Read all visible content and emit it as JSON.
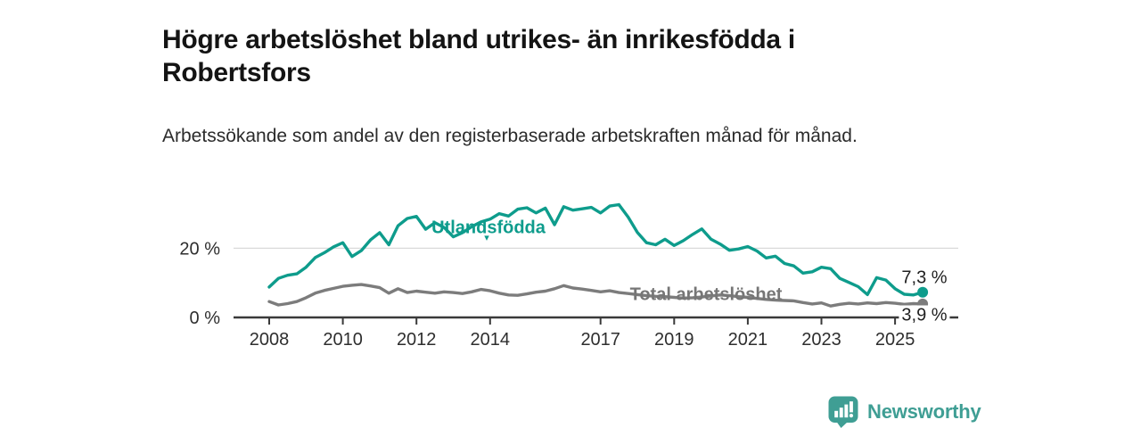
{
  "title": "Högre arbetslöshet bland utrikes- än inrikesfödda i Robertsfors",
  "subtitle": "Arbetssökande som andel av den registerbaserade arbetskraften månad för månad.",
  "icons": {
    "label_pointer": "▾"
  },
  "branding": {
    "name": "Newsworthy",
    "color": "#3f9e94"
  },
  "chart_data": {
    "type": "line",
    "title": "Högre arbetslöshet bland utrikes- än inrikesfödda i Robertsfors",
    "subtitle": "Arbetssökande som andel av den registerbaserade arbetskraften månad för månad.",
    "x_unit": "decimal_year",
    "x_start": 2008,
    "x_step": 0.25,
    "xlim": [
      2007.6,
      2026.2
    ],
    "ylim": [
      0,
      34
    ],
    "grid": "y-at-20-only",
    "legend_position": "inline-labels",
    "grid_y": [
      20
    ],
    "y_ticks": [
      {
        "value": 20,
        "label": "20 %"
      },
      {
        "value": 0,
        "label": "0 %"
      }
    ],
    "x_ticks": [
      {
        "year": 2008,
        "label": "2008"
      },
      {
        "year": 2010,
        "label": "2010"
      },
      {
        "year": 2012,
        "label": "2012"
      },
      {
        "year": 2014,
        "label": "2014"
      },
      {
        "year": 2017,
        "label": "2017"
      },
      {
        "year": 2019,
        "label": "2019"
      },
      {
        "year": 2021,
        "label": "2021"
      },
      {
        "year": 2023,
        "label": "2023"
      },
      {
        "year": 2025,
        "label": "2025"
      }
    ],
    "series": [
      {
        "name": "Utlandsfödda",
        "color": "#0e9c8c",
        "end_label": "7,3 %",
        "end_value": 7.3,
        "values": [
          8.8,
          11.3,
          12.2,
          12.6,
          14.5,
          17.3,
          18.7,
          20.4,
          21.6,
          17.6,
          19.3,
          22.4,
          24.5,
          21.0,
          26.5,
          28.6,
          29.2,
          25.5,
          27.4,
          26.0,
          23.3,
          24.5,
          26.2,
          27.6,
          28.4,
          30.0,
          29.3,
          31.3,
          31.7,
          30.2,
          31.6,
          26.8,
          32.0,
          31.0,
          31.4,
          31.8,
          30.2,
          32.2,
          32.6,
          29.0,
          24.6,
          21.6,
          21.0,
          22.6,
          20.8,
          22.2,
          24.0,
          25.6,
          22.6,
          21.2,
          19.4,
          19.8,
          20.5,
          19.2,
          17.2,
          17.7,
          15.6,
          14.9,
          12.8,
          13.2,
          14.5,
          14.1,
          11.3,
          10.1,
          8.9,
          6.6,
          11.5,
          10.8,
          8.3,
          6.7,
          6.5,
          7.3
        ]
      },
      {
        "name": "Total arbetslöshet",
        "color": "#7c7c7c",
        "end_label": "3,9 %",
        "end_value": 3.9,
        "values": [
          4.6,
          3.6,
          4.0,
          4.6,
          5.7,
          7.0,
          7.8,
          8.4,
          9.0,
          9.3,
          9.5,
          9.1,
          8.6,
          7.0,
          8.3,
          7.2,
          7.6,
          7.3,
          7.0,
          7.4,
          7.2,
          6.9,
          7.4,
          8.1,
          7.7,
          7.0,
          6.5,
          6.4,
          6.8,
          7.3,
          7.6,
          8.3,
          9.2,
          8.5,
          8.2,
          7.8,
          7.4,
          7.7,
          7.2,
          6.9,
          6.6,
          6.3,
          6.1,
          6.0,
          5.8,
          5.6,
          5.7,
          5.9,
          6.2,
          6.5,
          6.3,
          6.0,
          5.8,
          5.5,
          5.2,
          5.0,
          4.9,
          4.8,
          4.3,
          3.9,
          4.2,
          3.3,
          3.8,
          4.1,
          3.9,
          4.2,
          4.0,
          4.3,
          4.1,
          3.8,
          4.0,
          3.9
        ]
      }
    ]
  }
}
